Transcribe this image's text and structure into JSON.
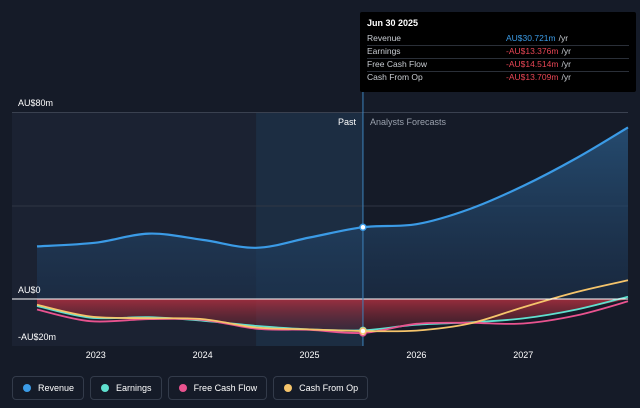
{
  "tooltip": {
    "date": "Jun 30 2025",
    "rows": [
      {
        "label": "Revenue",
        "value": "AU$30.721m",
        "unit": "/yr",
        "color": "#3b9be6"
      },
      {
        "label": "Earnings",
        "value": "-AU$13.376m",
        "unit": "/yr",
        "color": "#e84655"
      },
      {
        "label": "Free Cash Flow",
        "value": "-AU$14.514m",
        "unit": "/yr",
        "color": "#e84655"
      },
      {
        "label": "Cash From Op",
        "value": "-AU$13.709m",
        "unit": "/yr",
        "color": "#e84655"
      }
    ]
  },
  "legend": [
    {
      "label": "Revenue",
      "color": "#3b9be6",
      "icon": "revenue-dot"
    },
    {
      "label": "Earnings",
      "color": "#5fe0cf",
      "icon": "earnings-dot"
    },
    {
      "label": "Free Cash Flow",
      "color": "#e9538f",
      "icon": "free-cash-flow-dot"
    },
    {
      "label": "Cash From Op",
      "color": "#f5c46b",
      "icon": "cash-from-op-dot"
    }
  ],
  "chart_data": {
    "type": "line",
    "ylim": [
      -20,
      80
    ],
    "yticks": [
      {
        "value": 80,
        "label": "AU$80m"
      },
      {
        "value": 0,
        "label": "AU$0"
      },
      {
        "value": -20,
        "label": "-AU$20m"
      }
    ],
    "xlim": [
      2022.45,
      2027.98
    ],
    "xticks": [
      2023,
      2024,
      2025,
      2026,
      2027
    ],
    "past_label": "Past",
    "forecast_label": "Analysts Forecasts",
    "divider_x": 2025.5,
    "highlight_x_range": [
      2024.5,
      2025.5
    ],
    "series": [
      {
        "name": "Revenue",
        "color": "#3b9be6",
        "x": [
          2022.45,
          2023.0,
          2023.5,
          2024.0,
          2024.5,
          2025.0,
          2025.5,
          2026.0,
          2026.5,
          2027.0,
          2027.5,
          2027.98
        ],
        "y": [
          22.5,
          24.1,
          28.0,
          25.3,
          21.9,
          26.3,
          30.7,
          32.0,
          38.5,
          48.4,
          60.3,
          73.4
        ]
      },
      {
        "name": "Earnings",
        "color": "#5fe0cf",
        "x": [
          2022.45,
          2022.95,
          2023.5,
          2024.0,
          2024.5,
          2025.0,
          2025.5,
          2026.0,
          2026.5,
          2027.0,
          2027.5,
          2027.98
        ],
        "y": [
          -3.0,
          -8.0,
          -7.8,
          -9.3,
          -11.5,
          -13.0,
          -13.4,
          -11.0,
          -10.0,
          -8.3,
          -4.5,
          1.0
        ]
      },
      {
        "name": "Free Cash Flow",
        "color": "#e9538f",
        "x": [
          2022.45,
          2022.95,
          2023.5,
          2024.0,
          2024.5,
          2025.0,
          2025.5,
          2026.0,
          2026.5,
          2027.0,
          2027.5,
          2027.98
        ],
        "y": [
          -4.5,
          -9.5,
          -8.6,
          -8.9,
          -12.7,
          -13.2,
          -14.5,
          -10.6,
          -10.2,
          -10.5,
          -7.0,
          -1.0
        ]
      },
      {
        "name": "Cash From Op",
        "color": "#f5c46b",
        "x": [
          2022.45,
          2022.95,
          2023.5,
          2024.0,
          2024.5,
          2025.0,
          2025.5,
          2026.0,
          2026.5,
          2027.0,
          2027.5,
          2027.98
        ],
        "y": [
          -2.5,
          -7.5,
          -8.2,
          -8.6,
          -12.2,
          -13.0,
          -13.7,
          -13.5,
          -10.5,
          -3.5,
          3.0,
          8.0
        ]
      }
    ]
  }
}
